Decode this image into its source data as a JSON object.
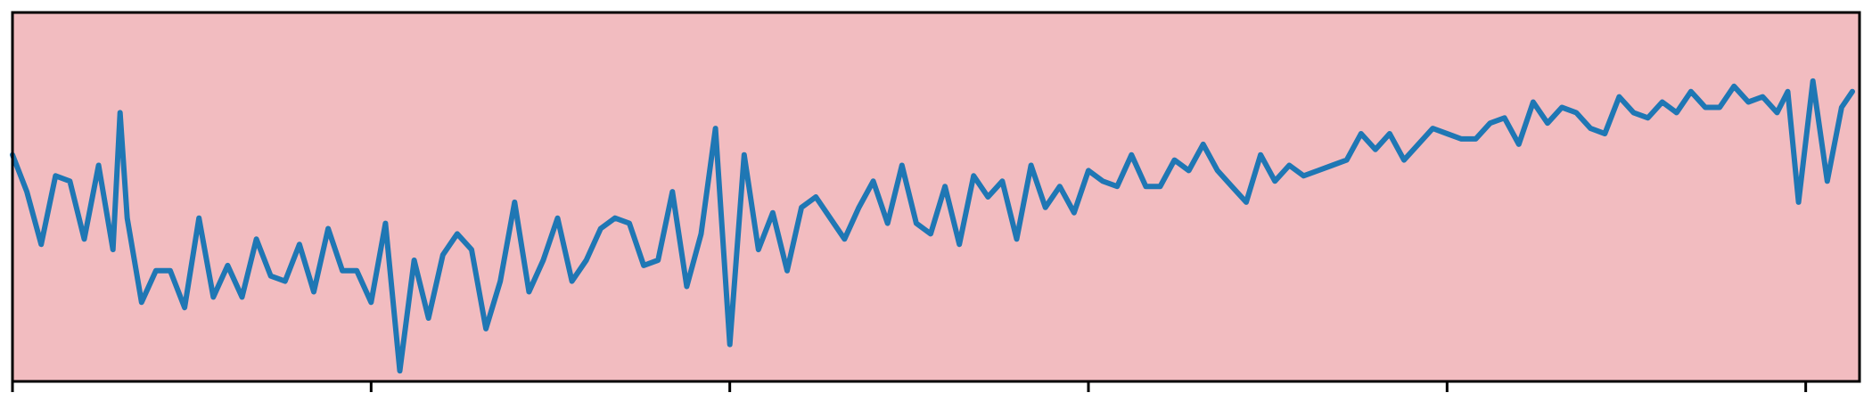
{
  "chart_data": {
    "type": "line",
    "title": "",
    "xlabel": "",
    "ylabel": "",
    "xlim": [
      0,
      1030
    ],
    "ylim": [
      -3.5,
      3.5
    ],
    "x_ticks": [
      0,
      200,
      400,
      600,
      800,
      1000
    ],
    "x_tick_labels_visible": false,
    "y_ticks_visible": false,
    "grid": false,
    "legend": "none",
    "colors": {
      "background": "#f2bcc0",
      "line": "#1f77b4",
      "frame": "#000000"
    },
    "series": [
      {
        "points": [
          [
            0,
            0.8
          ],
          [
            8,
            0.1
          ],
          [
            16,
            -0.9
          ],
          [
            24,
            0.4
          ],
          [
            32,
            0.3
          ],
          [
            40,
            -0.8
          ],
          [
            48,
            0.6
          ],
          [
            56,
            -1.0
          ],
          [
            60,
            1.6
          ],
          [
            64,
            -0.4
          ],
          [
            72,
            -2.0
          ],
          [
            80,
            -1.4
          ],
          [
            88,
            -1.4
          ],
          [
            96,
            -2.1
          ],
          [
            104,
            -0.4
          ],
          [
            112,
            -1.9
          ],
          [
            120,
            -1.3
          ],
          [
            128,
            -1.9
          ],
          [
            136,
            -0.8
          ],
          [
            144,
            -1.5
          ],
          [
            152,
            -1.6
          ],
          [
            160,
            -0.9
          ],
          [
            168,
            -1.8
          ],
          [
            176,
            -0.6
          ],
          [
            184,
            -1.4
          ],
          [
            192,
            -1.4
          ],
          [
            200,
            -2.0
          ],
          [
            208,
            -0.5
          ],
          [
            216,
            -3.3
          ],
          [
            224,
            -1.2
          ],
          [
            232,
            -2.3
          ],
          [
            240,
            -1.1
          ],
          [
            248,
            -0.7
          ],
          [
            256,
            -1.0
          ],
          [
            264,
            -2.5
          ],
          [
            272,
            -1.6
          ],
          [
            280,
            -0.1
          ],
          [
            288,
            -1.8
          ],
          [
            296,
            -1.2
          ],
          [
            304,
            -0.4
          ],
          [
            312,
            -1.6
          ],
          [
            320,
            -1.2
          ],
          [
            328,
            -0.6
          ],
          [
            336,
            -0.4
          ],
          [
            344,
            -0.5
          ],
          [
            352,
            -1.3
          ],
          [
            360,
            -1.2
          ],
          [
            368,
            0.1
          ],
          [
            376,
            -1.7
          ],
          [
            384,
            -0.7
          ],
          [
            392,
            1.3
          ],
          [
            400,
            -2.8
          ],
          [
            408,
            0.8
          ],
          [
            416,
            -1.0
          ],
          [
            424,
            -0.3
          ],
          [
            432,
            -1.4
          ],
          [
            440,
            -0.2
          ],
          [
            448,
            0.0
          ],
          [
            456,
            -0.4
          ],
          [
            464,
            -0.8
          ],
          [
            472,
            -0.2
          ],
          [
            480,
            0.3
          ],
          [
            488,
            -0.5
          ],
          [
            496,
            0.6
          ],
          [
            504,
            -0.5
          ],
          [
            512,
            -0.7
          ],
          [
            520,
            0.2
          ],
          [
            528,
            -0.9
          ],
          [
            536,
            0.4
          ],
          [
            544,
            0.0
          ],
          [
            552,
            0.3
          ],
          [
            560,
            -0.8
          ],
          [
            568,
            0.6
          ],
          [
            576,
            -0.2
          ],
          [
            584,
            0.2
          ],
          [
            592,
            -0.3
          ],
          [
            600,
            0.5
          ],
          [
            608,
            0.3
          ],
          [
            616,
            0.2
          ],
          [
            624,
            0.8
          ],
          [
            632,
            0.2
          ],
          [
            640,
            0.2
          ],
          [
            648,
            0.7
          ],
          [
            656,
            0.5
          ],
          [
            664,
            1.0
          ],
          [
            672,
            0.5
          ],
          [
            680,
            0.2
          ],
          [
            688,
            -0.1
          ],
          [
            696,
            0.8
          ],
          [
            704,
            0.3
          ],
          [
            712,
            0.6
          ],
          [
            720,
            0.4
          ],
          [
            728,
            0.5
          ],
          [
            736,
            0.6
          ],
          [
            744,
            0.7
          ],
          [
            752,
            1.2
          ],
          [
            760,
            0.9
          ],
          [
            768,
            1.2
          ],
          [
            776,
            0.7
          ],
          [
            784,
            1.0
          ],
          [
            792,
            1.3
          ],
          [
            800,
            1.2
          ],
          [
            808,
            1.1
          ],
          [
            816,
            1.1
          ],
          [
            824,
            1.4
          ],
          [
            832,
            1.5
          ],
          [
            840,
            1.0
          ],
          [
            848,
            1.8
          ],
          [
            856,
            1.4
          ],
          [
            864,
            1.7
          ],
          [
            872,
            1.6
          ],
          [
            880,
            1.3
          ],
          [
            888,
            1.2
          ],
          [
            896,
            1.9
          ],
          [
            904,
            1.6
          ],
          [
            912,
            1.5
          ],
          [
            920,
            1.8
          ],
          [
            928,
            1.6
          ],
          [
            936,
            2.0
          ],
          [
            944,
            1.7
          ],
          [
            952,
            1.7
          ],
          [
            960,
            2.1
          ],
          [
            968,
            1.8
          ],
          [
            976,
            1.9
          ],
          [
            984,
            1.6
          ],
          [
            990,
            2.0
          ],
          [
            996,
            -0.1
          ],
          [
            1004,
            2.2
          ],
          [
            1012,
            0.3
          ],
          [
            1020,
            1.7
          ],
          [
            1026,
            2.0
          ]
        ]
      }
    ]
  }
}
